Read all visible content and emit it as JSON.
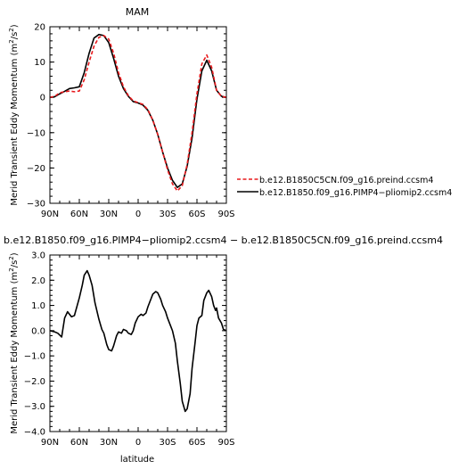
{
  "chart_data": [
    {
      "type": "line",
      "title": "MAM",
      "xlabel": "",
      "ylabel": "Merid Transient Eddy Momentum (m²/s²)",
      "x_axis": "latitude in degrees, 90 = 90N on the left, -90 = 90S on the right",
      "xlim": [
        90,
        -90
      ],
      "ylim": [
        -30,
        20
      ],
      "x_ticks": [
        90,
        60,
        30,
        0,
        -30,
        -60,
        -90
      ],
      "x_tick_labels": [
        "90N",
        "60N",
        "30N",
        "0",
        "30S",
        "60S",
        "90S"
      ],
      "y_ticks": [
        20,
        10,
        0,
        -10,
        -20,
        -30
      ],
      "y_tick_labels": [
        "20",
        "10",
        "0",
        "−10",
        "−20",
        "−30"
      ],
      "legend_position": "right",
      "series": [
        {
          "name": "b.e12.B1850C5CN.f09_g16.preind.ccsm4",
          "color": "#e8191c",
          "dash": "dashed",
          "x": [
            90,
            85,
            80,
            75,
            70,
            65,
            60,
            55,
            50,
            45,
            40,
            35,
            30,
            25,
            20,
            15,
            10,
            5,
            0,
            -5,
            -10,
            -15,
            -20,
            -25,
            -30,
            -35,
            -40,
            -45,
            -50,
            -55,
            -60,
            -65,
            -70,
            -75,
            -80,
            -85,
            -90
          ],
          "y": [
            0,
            0.3,
            1.3,
            1.6,
            1.8,
            1.6,
            1.8,
            5.0,
            10.0,
            14.5,
            17.0,
            17.5,
            16.5,
            12.5,
            7.0,
            3.0,
            0.5,
            -1.0,
            -1.5,
            -2.0,
            -3.5,
            -6.5,
            -10.5,
            -15.5,
            -20.5,
            -24.5,
            -26.5,
            -25.0,
            -19.0,
            -10.0,
            1.0,
            9.5,
            12.0,
            8.5,
            2.0,
            0.3,
            0
          ]
        },
        {
          "name": "b.e12.B1850.f09_g16.PIMP4−pliomip2.ccsm4",
          "color": "#000000",
          "dash": "solid",
          "x": [
            90,
            85,
            80,
            75,
            70,
            65,
            60,
            55,
            50,
            45,
            40,
            35,
            30,
            25,
            20,
            15,
            10,
            5,
            0,
            -5,
            -10,
            -15,
            -20,
            -25,
            -30,
            -35,
            -40,
            -45,
            -50,
            -55,
            -60,
            -65,
            -70,
            -75,
            -80,
            -85,
            -90
          ],
          "y": [
            0,
            0.2,
            1.0,
            1.7,
            2.5,
            2.7,
            3.0,
            7.0,
            12.5,
            16.8,
            17.8,
            17.5,
            15.5,
            11.0,
            6.0,
            2.5,
            0.3,
            -1.2,
            -1.6,
            -2.2,
            -3.7,
            -6.5,
            -10.5,
            -15.5,
            -20.0,
            -23.5,
            -25.5,
            -24.5,
            -19.5,
            -11.5,
            -0.5,
            7.5,
            10.5,
            7.5,
            2.0,
            0.3,
            0
          ]
        }
      ]
    },
    {
      "type": "line",
      "title": "b.e12.B1850.f09_g16.PIMP4−pliomip2.ccsm4 − b.e12.B1850C5CN.f09_g16.preind.ccsm4",
      "xlabel": "latitude",
      "ylabel": "Merid Transient Eddy Momentum (m²/s²)",
      "x_axis": "latitude in degrees, 90 = 90N on the left, -90 = 90S on the right",
      "xlim": [
        90,
        -90
      ],
      "ylim": [
        -4.0,
        3.0
      ],
      "x_ticks": [
        90,
        60,
        30,
        0,
        -30,
        -60,
        -90
      ],
      "x_tick_labels": [
        "90N",
        "60N",
        "30N",
        "0",
        "30S",
        "60S",
        "90S"
      ],
      "y_ticks": [
        3.0,
        2.0,
        1.0,
        0.0,
        -1.0,
        -2.0,
        -3.0,
        -4.0
      ],
      "y_tick_labels": [
        "3.0",
        "2.0",
        "1.0",
        "0.0",
        "−1.0",
        "−2.0",
        "−3.0",
        "−4.0"
      ],
      "series": [
        {
          "color": "#000000",
          "dash": "solid",
          "x": [
            90,
            85,
            82,
            78,
            75,
            72,
            70,
            68,
            65,
            60,
            57,
            55,
            52,
            50,
            47,
            44,
            40,
            37,
            35,
            32,
            30,
            27,
            25,
            22,
            20,
            17,
            15,
            12,
            10,
            7,
            5,
            3,
            0,
            -3,
            -5,
            -8,
            -10,
            -13,
            -15,
            -18,
            -20,
            -23,
            -25,
            -28,
            -30,
            -33,
            -35,
            -38,
            -40,
            -43,
            -45,
            -48,
            -50,
            -53,
            -55,
            -58,
            -60,
            -62,
            -65,
            -67,
            -70,
            -72,
            -75,
            -77,
            -79,
            -80,
            -82,
            -85,
            -87,
            -90
          ],
          "y": [
            0,
            -0.05,
            -0.1,
            -0.25,
            0.5,
            0.75,
            0.65,
            0.55,
            0.6,
            1.3,
            1.8,
            2.2,
            2.38,
            2.2,
            1.8,
            1.1,
            0.45,
            0.05,
            -0.1,
            -0.55,
            -0.75,
            -0.8,
            -0.6,
            -0.2,
            -0.05,
            -0.1,
            0.05,
            0.0,
            -0.1,
            -0.15,
            0.0,
            0.3,
            0.55,
            0.65,
            0.6,
            0.7,
            0.95,
            1.25,
            1.45,
            1.55,
            1.5,
            1.25,
            1.0,
            0.75,
            0.5,
            0.2,
            0.0,
            -0.5,
            -1.2,
            -2.1,
            -2.8,
            -3.2,
            -3.1,
            -2.5,
            -1.5,
            -0.5,
            0.2,
            0.5,
            0.6,
            1.2,
            1.5,
            1.6,
            1.35,
            1.0,
            0.8,
            0.9,
            0.5,
            0.3,
            0.05,
            0
          ]
        }
      ]
    }
  ],
  "legend": [
    {
      "label": "b.e12.B1850C5CN.f09_g16.preind.ccsm4"
    },
    {
      "label": "b.e12.B1850.f09_g16.PIMP4−pliomip2.ccsm4"
    }
  ],
  "top": {
    "title": "MAM",
    "ylabel": "Merid Transient Eddy Momentum (m²/s²)"
  },
  "bottom": {
    "title": "b.e12.B1850.f09_g16.PIMP4−pliomip2.ccsm4 − b.e12.B1850C5CN.f09_g16.preind.ccsm4",
    "xlabel": "latitude",
    "ylabel": "Merid Transient Eddy Momentum (m²/s²)"
  }
}
